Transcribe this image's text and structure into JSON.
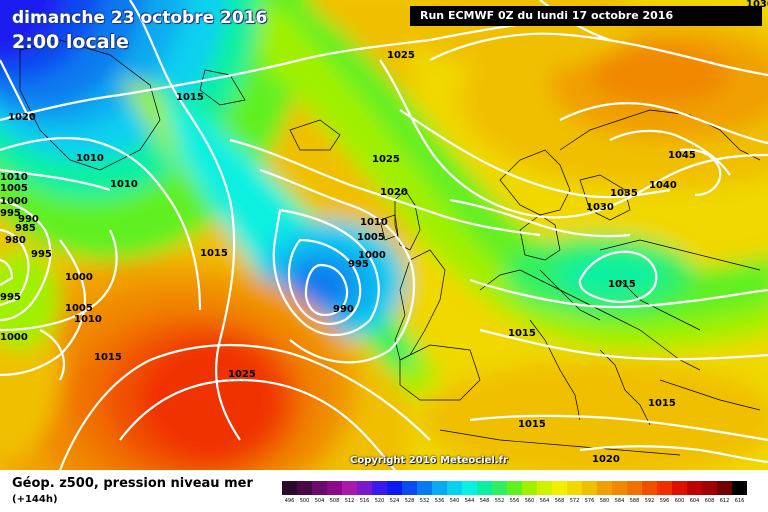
{
  "map": {
    "title_date": "dimanche 23 octobre 2016",
    "title_time": "2:00 locale",
    "run_info": "Run ECMWF 0Z du lundi 17 octobre 2016",
    "copyright": "Copyright 2016 Meteociel.fr"
  },
  "pressure_labels": [
    {
      "text": "1030"
    },
    {
      "text": "1025"
    },
    {
      "text": "1015"
    },
    {
      "text": "1020"
    },
    {
      "text": "1010"
    },
    {
      "text": "1010"
    },
    {
      "text": "1010"
    },
    {
      "text": "1005"
    },
    {
      "text": "1000"
    },
    {
      "text": "995"
    },
    {
      "text": "990"
    },
    {
      "text": "985"
    },
    {
      "text": "980"
    },
    {
      "text": "995"
    },
    {
      "text": "1000"
    },
    {
      "text": "1005"
    },
    {
      "text": "1010"
    },
    {
      "text": "995"
    },
    {
      "text": "1000"
    },
    {
      "text": "1015"
    },
    {
      "text": "1025"
    },
    {
      "text": "1020"
    },
    {
      "text": "1010"
    },
    {
      "text": "1005"
    },
    {
      "text": "1000"
    },
    {
      "text": "995"
    },
    {
      "text": "990"
    },
    {
      "text": "1025"
    },
    {
      "text": "1015"
    },
    {
      "text": "1015"
    },
    {
      "text": "1045"
    },
    {
      "text": "1040"
    },
    {
      "text": "1035"
    },
    {
      "text": "1030"
    },
    {
      "text": "1015"
    },
    {
      "text": "1015"
    },
    {
      "text": "1015"
    },
    {
      "text": "1020"
    },
    {
      "text": "1025"
    },
    {
      "text": "1025"
    }
  ],
  "legend": {
    "title": "Géop. z500, pression niveau mer",
    "subtitle": "(+144h)",
    "scale": [
      {
        "value": "496",
        "color": "#2a0a2a"
      },
      {
        "value": "500",
        "color": "#4a0a4a"
      },
      {
        "value": "504",
        "color": "#6a0a6a"
      },
      {
        "value": "508",
        "color": "#8a0a8a"
      },
      {
        "value": "512",
        "color": "#aa1aaa"
      },
      {
        "value": "516",
        "color": "#7a1acc"
      },
      {
        "value": "520",
        "color": "#3a1aee"
      },
      {
        "value": "524",
        "color": "#0a1af0"
      },
      {
        "value": "528",
        "color": "#0a4af0"
      },
      {
        "value": "532",
        "color": "#0a7af0"
      },
      {
        "value": "536",
        "color": "#0aaaf0"
      },
      {
        "value": "540",
        "color": "#0ad0f0"
      },
      {
        "value": "544",
        "color": "#0af0e0"
      },
      {
        "value": "548",
        "color": "#0af0a0"
      },
      {
        "value": "552",
        "color": "#30f060"
      },
      {
        "value": "556",
        "color": "#60f020"
      },
      {
        "value": "560",
        "color": "#a0f000"
      },
      {
        "value": "564",
        "color": "#d0f000"
      },
      {
        "value": "568",
        "color": "#f0f000"
      },
      {
        "value": "572",
        "color": "#f0d800"
      },
      {
        "value": "576",
        "color": "#f0c000"
      },
      {
        "value": "580",
        "color": "#f0a000"
      },
      {
        "value": "584",
        "color": "#f08800"
      },
      {
        "value": "588",
        "color": "#f07000"
      },
      {
        "value": "592",
        "color": "#f05000"
      },
      {
        "value": "596",
        "color": "#f03000"
      },
      {
        "value": "600",
        "color": "#e01000"
      },
      {
        "value": "604",
        "color": "#c00000"
      },
      {
        "value": "608",
        "color": "#a00000"
      },
      {
        "value": "612",
        "color": "#700000"
      },
      {
        "value": "616",
        "color": "#000000"
      }
    ]
  }
}
